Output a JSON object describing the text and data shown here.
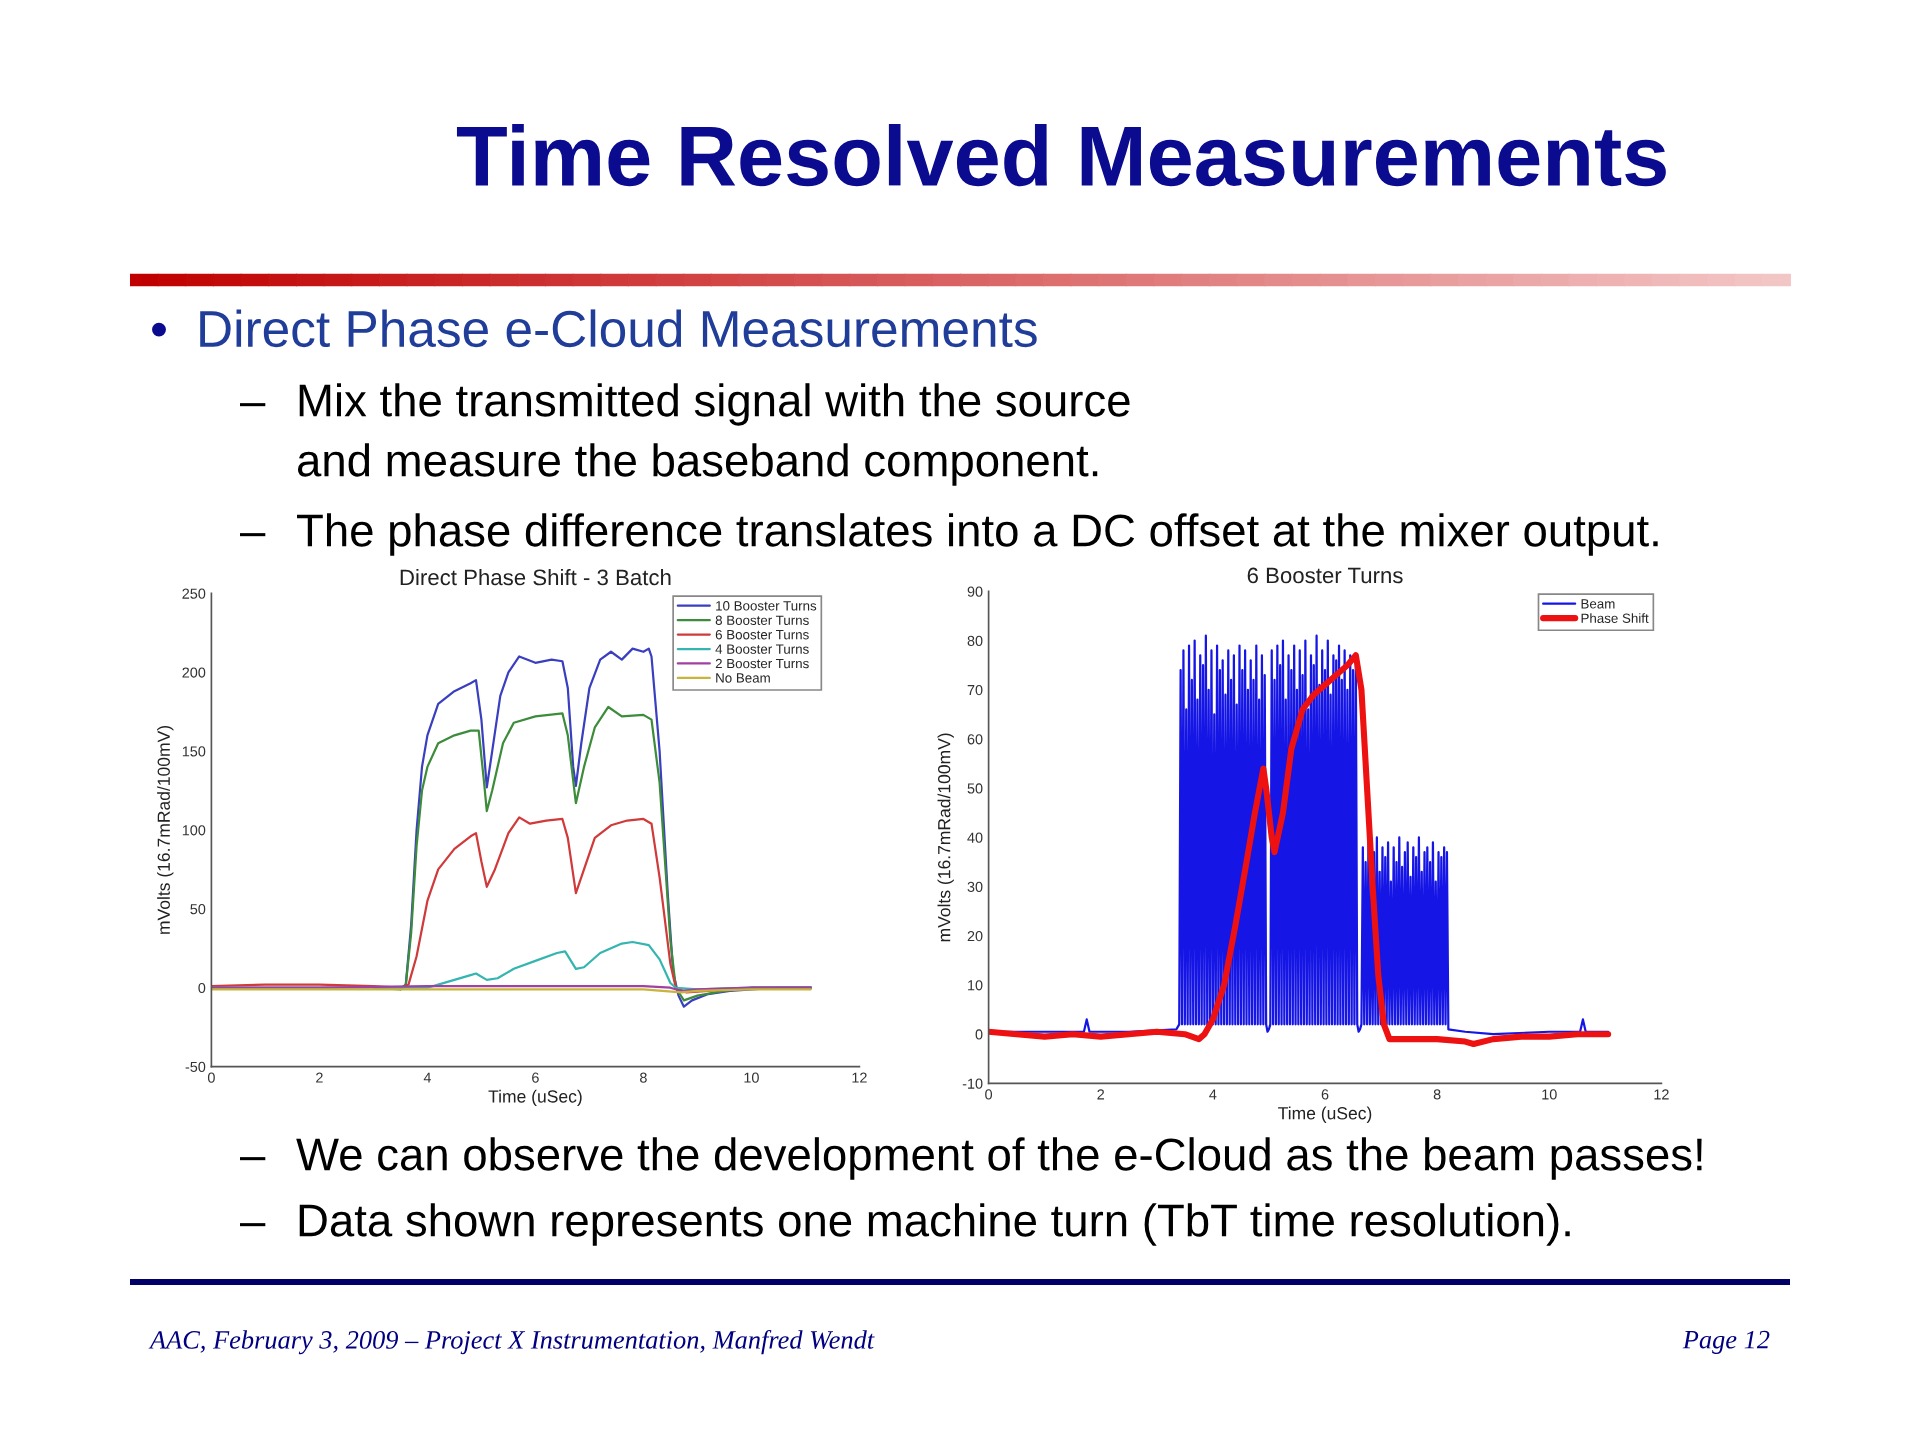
{
  "chart_data": [
    {
      "type": "other",
      "title": "Time Resolved Measurements",
      "annotations": [
        "• Direct Phase e-Cloud Measurements",
        "– Mix the transmitted signal with the source\nand measure the baseband component.",
        "– The phase difference translates into a DC offset at the mixer output."
      ]
    },
    {
      "type": "line",
      "title": "Direct Phase Shift - 3 Batch",
      "xlabel": "Time (uSec)",
      "ylabel": "mVolts (16.7mRad/100mV)",
      "xlim": [
        0,
        12
      ],
      "ylim": [
        -50,
        250
      ],
      "xticks": [
        0,
        2,
        4,
        6,
        8,
        10,
        12
      ],
      "yticks": [
        -50,
        0,
        50,
        100,
        150,
        200,
        250
      ],
      "legend": "top right",
      "series": [
        {
          "name": "10 Booster Turns",
          "color": "#3a3fc0",
          "x": [
            3.5,
            3.6,
            3.7,
            3.8,
            3.9,
            4.0,
            4.2,
            4.5,
            4.8,
            4.9,
            5.0,
            5.1,
            5.2,
            5.35,
            5.5,
            5.7,
            6.0,
            6.3,
            6.5,
            6.6,
            6.7,
            6.75,
            6.85,
            7.0,
            7.2,
            7.4,
            7.6,
            7.8,
            8.0,
            8.1,
            8.15,
            8.3,
            8.45,
            8.55,
            8.65,
            8.75,
            8.9,
            9.2,
            9.6,
            10,
            10.5,
            11.1
          ],
          "values": [
            -1,
            2,
            40,
            100,
            140,
            160,
            180,
            188,
            193,
            195,
            170,
            127,
            150,
            185,
            200,
            210,
            206,
            208,
            207,
            190,
            140,
            128,
            155,
            190,
            208,
            213,
            208,
            215,
            213,
            215,
            210,
            150,
            60,
            10,
            -5,
            -12,
            -8,
            -4,
            -2,
            -1,
            0,
            0
          ]
        },
        {
          "name": "8 Booster Turns",
          "color": "#3c8c3c",
          "x": [
            3,
            3.5,
            3.6,
            3.7,
            3.8,
            3.9,
            4.0,
            4.2,
            4.5,
            4.8,
            4.95,
            5.05,
            5.1,
            5.2,
            5.4,
            5.6,
            6.0,
            6.5,
            6.6,
            6.75,
            6.9,
            7.1,
            7.35,
            7.6,
            8.0,
            8.15,
            8.3,
            8.5,
            8.6,
            8.75,
            9.0,
            9.5,
            10,
            11.1
          ],
          "values": [
            0,
            -1,
            2,
            35,
            90,
            125,
            140,
            155,
            160,
            163,
            163,
            130,
            112,
            125,
            155,
            168,
            172,
            174,
            160,
            117,
            140,
            165,
            178,
            172,
            173,
            170,
            130,
            30,
            0,
            -8,
            -5,
            -2,
            0,
            0
          ]
        },
        {
          "name": "6 Booster Turns",
          "color": "#d03a3a",
          "x": [
            0,
            1,
            2,
            3,
            3.5,
            3.65,
            3.8,
            4.0,
            4.2,
            4.5,
            4.8,
            4.9,
            5.0,
            5.1,
            5.25,
            5.5,
            5.7,
            5.9,
            6.2,
            6.5,
            6.6,
            6.75,
            6.9,
            7.1,
            7.4,
            7.7,
            8.0,
            8.15,
            8.3,
            8.5,
            8.6,
            8.8,
            9.2,
            10,
            11.1
          ],
          "values": [
            1,
            2,
            2,
            1,
            0,
            2,
            20,
            55,
            75,
            88,
            96,
            98,
            80,
            64,
            75,
            98,
            108,
            104,
            106,
            107,
            95,
            60,
            75,
            95,
            103,
            106,
            107,
            104,
            70,
            15,
            0,
            -3,
            -2,
            0,
            0
          ]
        },
        {
          "name": "4 Booster Turns",
          "color": "#35b5b0",
          "x": [
            0,
            2,
            4.0,
            4.2,
            4.5,
            4.8,
            4.9,
            5.1,
            5.3,
            5.6,
            6.0,
            6.4,
            6.55,
            6.75,
            6.9,
            7.2,
            7.6,
            7.8,
            8.1,
            8.3,
            8.5,
            8.6,
            9.0,
            10,
            11.1
          ],
          "values": [
            0,
            0,
            0,
            2,
            5,
            8,
            9,
            5,
            6,
            12,
            17,
            22,
            23,
            12,
            13,
            22,
            28,
            29,
            27,
            18,
            3,
            0,
            -1,
            0,
            0
          ]
        },
        {
          "name": "2 Booster Turns",
          "color": "#a040a0",
          "x": [
            0,
            2,
            4,
            6,
            8,
            8.5,
            8.7,
            9,
            10,
            11.1
          ],
          "values": [
            0,
            0,
            1,
            1,
            1,
            0,
            -2,
            -1,
            0,
            0
          ]
        },
        {
          "name": "No Beam",
          "color": "#c8b43c",
          "x": [
            0,
            2,
            4,
            6,
            8,
            8.7,
            9,
            10,
            11.1
          ],
          "values": [
            -1,
            -1,
            -1,
            -1,
            -1,
            -3,
            -2,
            -1,
            -1
          ]
        }
      ]
    },
    {
      "type": "line",
      "title": "6 Booster Turns",
      "xlabel": "Time (uSec)",
      "ylabel": "mVolts (16.7mRad/100mV)",
      "xlim": [
        0,
        12
      ],
      "ylim": [
        -10,
        90
      ],
      "xticks": [
        0,
        2,
        4,
        6,
        8,
        10,
        12
      ],
      "yticks": [
        -10,
        0,
        10,
        20,
        30,
        40,
        50,
        60,
        70,
        80,
        90
      ],
      "legend": "top right",
      "series": [
        {
          "name": "Beam",
          "color": "#1515e6",
          "x": [
            0,
            1,
            1.7,
            1.75,
            1.8,
            2.5,
            3.35,
            3.4,
            3.425,
            3.45,
            3.475,
            3.5,
            3.525,
            3.55,
            3.575,
            3.6,
            3.625,
            3.65,
            3.675,
            3.7,
            3.725,
            3.75,
            3.775,
            3.8,
            3.825,
            3.85,
            3.875,
            3.9,
            3.925,
            3.95,
            3.975,
            4.0,
            4.025,
            4.05,
            4.075,
            4.1,
            4.125,
            4.15,
            4.175,
            4.2,
            4.225,
            4.25,
            4.275,
            4.3,
            4.325,
            4.35,
            4.375,
            4.4,
            4.425,
            4.45,
            4.475,
            4.5,
            4.525,
            4.55,
            4.575,
            4.6,
            4.625,
            4.65,
            4.675,
            4.7,
            4.725,
            4.75,
            4.775,
            4.8,
            4.825,
            4.85,
            4.875,
            4.9,
            4.925,
            4.95,
            4.975,
            5.0,
            5.025,
            5.05,
            5.075,
            5.1,
            5.125,
            5.15,
            5.175,
            5.2,
            5.225,
            5.25,
            5.275,
            5.3,
            5.325,
            5.35,
            5.375,
            5.4,
            5.425,
            5.45,
            5.475,
            5.5,
            5.525,
            5.55,
            5.575,
            5.6,
            5.625,
            5.65,
            5.675,
            5.7,
            5.725,
            5.75,
            5.775,
            5.8,
            5.825,
            5.85,
            5.875,
            5.9,
            5.925,
            5.95,
            5.975,
            6.0,
            6.025,
            6.05,
            6.075,
            6.1,
            6.125,
            6.15,
            6.175,
            6.2,
            6.225,
            6.25,
            6.275,
            6.3,
            6.325,
            6.35,
            6.375,
            6.4,
            6.425,
            6.45,
            6.475,
            6.5,
            6.525,
            6.55,
            6.575,
            6.6,
            6.625,
            6.65,
            6.675,
            6.7,
            6.725,
            6.75,
            6.775,
            6.8,
            6.825,
            6.85,
            6.875,
            6.9,
            6.925,
            6.95,
            6.975,
            7.0,
            7.025,
            7.05,
            7.075,
            7.1,
            7.125,
            7.15,
            7.175,
            7.2,
            7.225,
            7.25,
            7.275,
            7.3,
            7.325,
            7.35,
            7.375,
            7.4,
            7.425,
            7.45,
            7.475,
            7.5,
            7.525,
            7.55,
            7.575,
            7.6,
            7.625,
            7.65,
            7.675,
            7.7,
            7.725,
            7.75,
            7.775,
            7.8,
            7.825,
            7.85,
            7.875,
            7.9,
            7.925,
            7.95,
            7.975,
            8.0,
            8.025,
            8.05,
            8.075,
            8.1,
            8.125,
            8.15,
            8.175,
            8.2,
            8.5,
            9.0,
            10.0,
            10.55,
            10.6,
            10.65,
            11.05
          ],
          "values": [
            0.5,
            0.5,
            0.5,
            3,
            0.5,
            0.5,
            1,
            2,
            74,
            2,
            78,
            2,
            66,
            2,
            79,
            2,
            72,
            2,
            80,
            2,
            68,
            2,
            77,
            2,
            75,
            2,
            81,
            2,
            70,
            2,
            78,
            2,
            65,
            2,
            79,
            2,
            74,
            2,
            76,
            2,
            69,
            2,
            78,
            2,
            72,
            2,
            77,
            2,
            67,
            2,
            79,
            2,
            74,
            2,
            78,
            2,
            70,
            2,
            76,
            2,
            72,
            2,
            79,
            2,
            68,
            2,
            77,
            2,
            73,
            2,
            0.5,
            1,
            2,
            78,
            2,
            72,
            2,
            79,
            2,
            75,
            2,
            80,
            2,
            68,
            2,
            77,
            2,
            74,
            2,
            79,
            2,
            70,
            2,
            78,
            2,
            73,
            2,
            80,
            2,
            66,
            2,
            77,
            2,
            75,
            2,
            81,
            2,
            71,
            2,
            78,
            2,
            74,
            2,
            80,
            2,
            69,
            2,
            77,
            2,
            76,
            2,
            79,
            2,
            72,
            2,
            78,
            2,
            70,
            2,
            77,
            2,
            74,
            2,
            76,
            2,
            0.5,
            1,
            2,
            38,
            2,
            35,
            2,
            39,
            2,
            30,
            2,
            37,
            2,
            40,
            2,
            33,
            2,
            38,
            2,
            36,
            2,
            39,
            2,
            31,
            2,
            38,
            2,
            35,
            2,
            40,
            2,
            34,
            2,
            37,
            2,
            39,
            2,
            32,
            2,
            38,
            2,
            36,
            2,
            40,
            2,
            33,
            2,
            37,
            2,
            38,
            2,
            35,
            2,
            39,
            2,
            31,
            2,
            37,
            2,
            36,
            2,
            38,
            2,
            37,
            1,
            0.5,
            0,
            0.5,
            0.5,
            3,
            0.5,
            0.5
          ]
        },
        {
          "name": "Phase Shift",
          "color": "#ee1111",
          "x": [
            0,
            0.5,
            1.0,
            1.5,
            2.0,
            2.5,
            3.0,
            3.5,
            3.75,
            3.85,
            4.0,
            4.2,
            4.4,
            4.6,
            4.75,
            4.9,
            4.95,
            5.05,
            5.1,
            5.25,
            5.4,
            5.6,
            5.8,
            6.0,
            6.2,
            6.4,
            6.55,
            6.65,
            6.75,
            6.85,
            6.95,
            7.05,
            7.15,
            7.5,
            8.0,
            8.5,
            8.65,
            9.0,
            9.5,
            10.0,
            10.5,
            11.05
          ],
          "values": [
            0.5,
            0,
            -0.5,
            0,
            -0.5,
            0,
            0.5,
            0,
            -1,
            0,
            3,
            10,
            22,
            35,
            45,
            54,
            50,
            40,
            37,
            45,
            58,
            66,
            69,
            71,
            73,
            75,
            77,
            70,
            50,
            30,
            12,
            2,
            -1,
            -1,
            -1,
            -1.5,
            -2,
            -1,
            -0.5,
            -0.5,
            0,
            0
          ]
        }
      ]
    },
    {
      "type": "other",
      "annotations": [
        "– We can observe the development of the e-Cloud as the beam passes!",
        "– Data shown represents one machine turn (TbT time resolution).",
        "AAC, February 3, 2009 – Project X Instrumentation, Manfred Wendt",
        "Page 12"
      ]
    }
  ]
}
